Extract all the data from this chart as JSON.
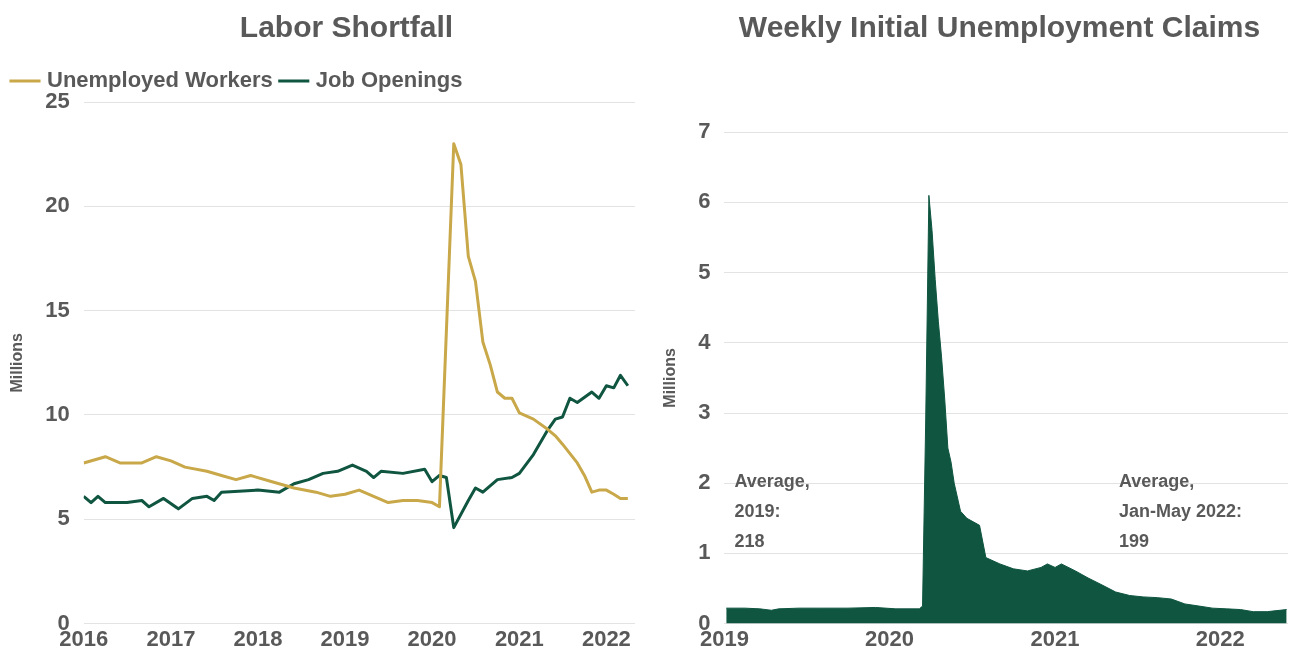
{
  "chart_data": [
    {
      "type": "line",
      "title": "Labor Shortfall",
      "ylabel": "Millions",
      "legend": "top",
      "grid": "y",
      "marker": "none",
      "line_style": "solid",
      "xlim": [
        "2016-01",
        "2022-05"
      ],
      "xticks": [
        "2016",
        "2017",
        "2018",
        "2019",
        "2020",
        "2021",
        "2022"
      ],
      "ylim": [
        0,
        25
      ],
      "yticks": [
        0,
        5,
        10,
        15,
        20,
        25
      ],
      "series": [
        {
          "name": "Unemployed Workers",
          "color": "#c9a84a",
          "x": [
            "2016-01",
            "2016-04",
            "2016-06",
            "2016-09",
            "2016-11",
            "2017-01",
            "2017-03",
            "2017-06",
            "2017-08",
            "2017-10",
            "2017-12",
            "2018-03",
            "2018-06",
            "2018-09",
            "2018-11",
            "2019-01",
            "2019-03",
            "2019-05",
            "2019-07",
            "2019-09",
            "2019-11",
            "2020-01",
            "2020-02",
            "2020-04",
            "2020-05",
            "2020-06",
            "2020-07",
            "2020-08",
            "2020-09",
            "2020-10",
            "2020-11",
            "2020-12",
            "2021-01",
            "2021-03",
            "2021-05",
            "2021-06",
            "2021-07",
            "2021-09",
            "2021-10",
            "2021-11",
            "2021-12",
            "2022-01",
            "2022-02",
            "2022-03",
            "2022-04"
          ],
          "values": [
            7.7,
            8.0,
            7.7,
            7.7,
            8.0,
            7.8,
            7.5,
            7.3,
            7.1,
            6.9,
            7.1,
            6.8,
            6.5,
            6.3,
            6.1,
            6.2,
            6.4,
            6.1,
            5.8,
            5.9,
            5.9,
            5.8,
            5.6,
            23.0,
            22.0,
            17.6,
            16.4,
            13.5,
            12.4,
            11.1,
            10.8,
            10.8,
            10.1,
            9.8,
            9.3,
            9.0,
            8.6,
            7.7,
            7.1,
            6.3,
            6.4,
            6.4,
            6.2,
            6.0,
            6.0
          ]
        },
        {
          "name": "Job Openings",
          "color": "#0f5540",
          "x": [
            "2016-01",
            "2016-02",
            "2016-03",
            "2016-04",
            "2016-07",
            "2016-09",
            "2016-10",
            "2016-12",
            "2017-02",
            "2017-04",
            "2017-06",
            "2017-07",
            "2017-08",
            "2018-01",
            "2018-04",
            "2018-06",
            "2018-08",
            "2018-10",
            "2018-12",
            "2019-02",
            "2019-04",
            "2019-05",
            "2019-06",
            "2019-09",
            "2019-12",
            "2020-01",
            "2020-02",
            "2020-03",
            "2020-04",
            "2020-06",
            "2020-07",
            "2020-08",
            "2020-10",
            "2020-12",
            "2021-01",
            "2021-03",
            "2021-05",
            "2021-06",
            "2021-07",
            "2021-08",
            "2021-09",
            "2021-11",
            "2021-12",
            "2022-01",
            "2022-02",
            "2022-03",
            "2022-04"
          ],
          "values": [
            6.1,
            5.8,
            6.1,
            5.8,
            5.8,
            5.9,
            5.6,
            6.0,
            5.5,
            6.0,
            6.1,
            5.9,
            6.3,
            6.4,
            6.3,
            6.7,
            6.9,
            7.2,
            7.3,
            7.6,
            7.3,
            7.0,
            7.3,
            7.2,
            7.4,
            6.8,
            7.1,
            7.0,
            4.6,
            5.9,
            6.5,
            6.3,
            6.9,
            7.0,
            7.2,
            8.1,
            9.3,
            9.8,
            9.9,
            10.8,
            10.6,
            11.1,
            10.8,
            11.4,
            11.3,
            11.9,
            11.4
          ]
        }
      ]
    },
    {
      "type": "area",
      "title": "Weekly Initial Unemployment Claims",
      "ylabel": "Millions",
      "legend": false,
      "grid": "y",
      "xlim": [
        "2019-01-01",
        "2022-05-31"
      ],
      "xticks": [
        "2019",
        "2020",
        "2021",
        "2022"
      ],
      "ylim": [
        0,
        7
      ],
      "yticks": [
        0,
        1,
        2,
        3,
        4,
        5,
        6,
        7
      ],
      "annotations": [
        "Average,\n2019:\n218",
        "Average,\nJan-May 2022:\n199"
      ],
      "series": [
        {
          "color": "#0f5540",
          "x": [
            "2019-01-05",
            "2019-02-15",
            "2019-03-20",
            "2019-04-15",
            "2019-05-01",
            "2019-06-15",
            "2019-08-01",
            "2019-10-01",
            "2019-12-01",
            "2020-01-15",
            "2020-03-07",
            "2020-03-14",
            "2020-03-21",
            "2020-03-28",
            "2020-04-04",
            "2020-04-11",
            "2020-04-18",
            "2020-04-25",
            "2020-05-02",
            "2020-05-09",
            "2020-05-16",
            "2020-05-23",
            "2020-06-06",
            "2020-06-20",
            "2020-07-04",
            "2020-07-18",
            "2020-08-01",
            "2020-09-01",
            "2020-10-01",
            "2020-11-01",
            "2020-12-01",
            "2020-12-15",
            "2021-01-01",
            "2021-01-15",
            "2021-02-15",
            "2021-03-15",
            "2021-04-15",
            "2021-05-15",
            "2021-06-15",
            "2021-07-15",
            "2021-08-15",
            "2021-09-15",
            "2021-10-15",
            "2021-11-15",
            "2021-12-15",
            "2022-01-15",
            "2022-02-15",
            "2022-03-15",
            "2022-04-15",
            "2022-05-28"
          ],
          "values": [
            0.22,
            0.22,
            0.21,
            0.19,
            0.21,
            0.22,
            0.22,
            0.22,
            0.23,
            0.21,
            0.21,
            0.25,
            2.9,
            6.1,
            5.6,
            4.9,
            4.3,
            3.8,
            3.2,
            2.5,
            2.3,
            2.0,
            1.6,
            1.5,
            1.45,
            1.4,
            0.94,
            0.85,
            0.78,
            0.75,
            0.8,
            0.85,
            0.8,
            0.85,
            0.75,
            0.65,
            0.55,
            0.45,
            0.4,
            0.38,
            0.37,
            0.35,
            0.28,
            0.25,
            0.22,
            0.21,
            0.2,
            0.17,
            0.17,
            0.2
          ]
        }
      ]
    }
  ]
}
